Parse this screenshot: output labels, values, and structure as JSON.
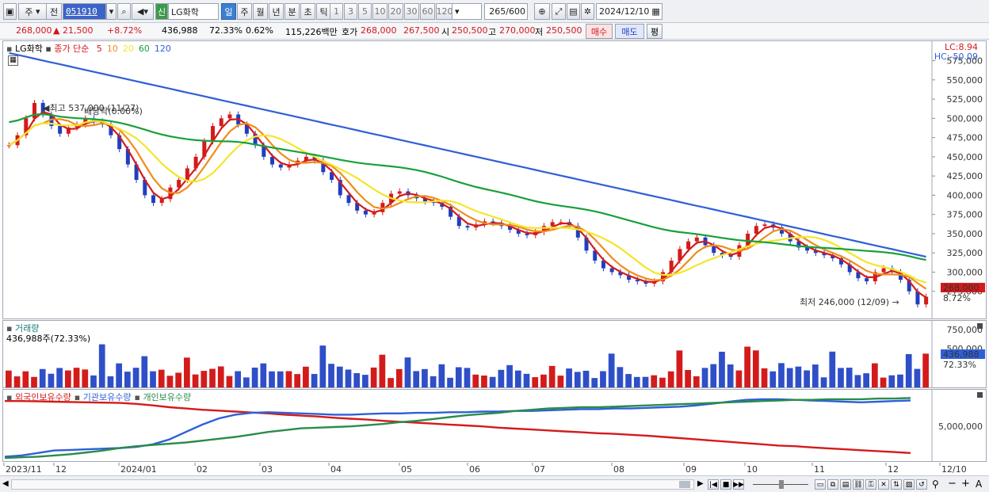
{
  "toolbar": {
    "market": "주",
    "prev": "전",
    "code": "051910",
    "name": "LG화학",
    "badge": "신",
    "periods": [
      "일",
      "주",
      "월",
      "년",
      "분",
      "초",
      "틱"
    ],
    "nums": [
      "1",
      "3",
      "5",
      "10",
      "20",
      "30",
      "60",
      "120"
    ],
    "count": "265",
    "count_total": "/600",
    "date": "2024/12/10"
  },
  "quote": {
    "price": "268,000",
    "change": "▲ 21,500",
    "rate": "+8.72%",
    "volume": "436,988",
    "vol_rate": "72.33%",
    "turnover": "0.62%",
    "amount": "115,226백만",
    "bid_label": "호가",
    "bid1": "268,000",
    "bid2": "267,500",
    "open_label": "시",
    "open": "250,500",
    "high_label": "고",
    "high": "270,000",
    "low_label": "저",
    "low": "250,500",
    "buy": "매수",
    "sell": "매도",
    "avg": "평"
  },
  "price_panel": {
    "stock": "LG화학",
    "ma_label": "종가 단순",
    "ma_periods": [
      "5",
      "10",
      "20",
      "60",
      "120"
    ],
    "ma_colors": [
      "#d41b1b",
      "#f08c1c",
      "#f5e52a",
      "#18a03a",
      "#2f5fd8"
    ],
    "lc": "LC:8.94",
    "hc": "HC:-50.09",
    "high_note": "최고 537,000 (11/27)",
    "ex_div_note": "배당락(0.00%)",
    "low_note": "최저 246,000 (12/09)",
    "price_tag": "268,000",
    "rate_tag": "8.72%"
  },
  "volume_panel": {
    "title": "거래량",
    "summary": "436,988주(72.33%)",
    "tag_value": "436,988",
    "tag_rate": "72.33%"
  },
  "holdings_panel": {
    "series": [
      "외국인보유수량",
      "기관보유수량",
      "개인보유수량"
    ],
    "colors": [
      "#d41b1b",
      "#2f5fd8",
      "#2a8c4a"
    ]
  },
  "x_axis": {
    "labels": [
      "2023/11",
      "12",
      "2024/01",
      "02",
      "03",
      "04",
      "05",
      "06",
      "07",
      "08",
      "09",
      "10",
      "11",
      "12",
      "12/10"
    ]
  },
  "chart_data": [
    {
      "type": "candlestick",
      "y_ticks": [
        "575,000",
        "550,000",
        "525,000",
        "500,000",
        "475,000",
        "450,000",
        "425,000",
        "400,000",
        "375,000",
        "350,000",
        "325,000",
        "300,000",
        "275,000"
      ],
      "ylim": [
        250000,
        590000
      ],
      "close": [
        465000,
        478000,
        500000,
        520000,
        505000,
        490000,
        480000,
        488000,
        492000,
        500000,
        496000,
        492000,
        478000,
        460000,
        440000,
        420000,
        400000,
        390000,
        395000,
        410000,
        420000,
        435000,
        450000,
        470000,
        490000,
        500000,
        505000,
        492000,
        480000,
        465000,
        450000,
        440000,
        436000,
        440000,
        445000,
        450000,
        445000,
        430000,
        420000,
        400000,
        390000,
        380000,
        375000,
        378000,
        390000,
        402000,
        405000,
        400000,
        396000,
        392000,
        390000,
        385000,
        372000,
        360000,
        358000,
        362000,
        366000,
        364000,
        360000,
        355000,
        350000,
        348000,
        352000,
        360000,
        365000,
        365000,
        360000,
        345000,
        328000,
        315000,
        305000,
        300000,
        296000,
        290000,
        288000,
        285000,
        288000,
        300000,
        315000,
        330000,
        340000,
        345000,
        335000,
        325000,
        322000,
        320000,
        335000,
        350000,
        360000,
        362000,
        358000,
        350000,
        340000,
        332000,
        328000,
        325000,
        322000,
        318000,
        310000,
        300000,
        292000,
        288000,
        300000,
        305000,
        300000,
        290000,
        275000,
        258000,
        268000
      ],
      "annotation_high": 537000,
      "annotation_low": 246000
    },
    {
      "type": "bar",
      "title": "거래량",
      "y_ticks": [
        "750,000",
        "500,000"
      ],
      "ylim": [
        0,
        820000
      ],
      "last_value": 436988
    },
    {
      "type": "line",
      "y_ticks": [
        "5,000,000"
      ],
      "series": [
        {
          "name": "외국인보유수량",
          "values": [
            9.2,
            9.2,
            9.15,
            9.1,
            9.05,
            9.0,
            8.95,
            8.9,
            8.75,
            8.5,
            8.2,
            8.0,
            7.8,
            7.65,
            7.5,
            7.35,
            7.2,
            7.0,
            6.85,
            6.7,
            6.5,
            6.35,
            6.2,
            6.0,
            5.85,
            5.7,
            5.55,
            5.4,
            5.25,
            5.1,
            4.9,
            4.75,
            4.6,
            4.45,
            4.3,
            4.15,
            4.0,
            3.9,
            3.75,
            3.6,
            3.4,
            3.2,
            3.0,
            2.8,
            2.6,
            2.4,
            2.2,
            2.0,
            1.9,
            1.7,
            1.55,
            1.4,
            1.25,
            1.1,
            0.95,
            0.8
          ]
        },
        {
          "name": "기관보유수량",
          "values": [
            0.2,
            0.4,
            0.8,
            1.2,
            1.3,
            1.4,
            1.5,
            1.6,
            1.8,
            2.2,
            3.0,
            4.2,
            5.4,
            6.4,
            7.0,
            7.3,
            7.4,
            7.3,
            7.2,
            7.1,
            7.0,
            7.0,
            7.1,
            7.2,
            7.2,
            7.3,
            7.3,
            7.4,
            7.4,
            7.5,
            7.5,
            7.6,
            7.6,
            7.7,
            7.8,
            7.9,
            7.9,
            8.0,
            8.0,
            8.1,
            8.2,
            8.3,
            8.5,
            8.8,
            9.1,
            9.4,
            9.5,
            9.5,
            9.4,
            9.3,
            9.2,
            9.1,
            9.0,
            9.1,
            9.2,
            9.3
          ]
        },
        {
          "name": "개인보유수량",
          "values": [
            0.0,
            0.1,
            0.2,
            0.4,
            0.6,
            0.9,
            1.2,
            1.6,
            1.9,
            2.1,
            2.3,
            2.5,
            2.8,
            3.1,
            3.4,
            3.8,
            4.2,
            4.5,
            4.8,
            4.9,
            5.0,
            5.1,
            5.3,
            5.5,
            5.8,
            6.0,
            6.3,
            6.6,
            6.9,
            7.1,
            7.3,
            7.6,
            7.8,
            8.0,
            8.1,
            8.2,
            8.2,
            8.3,
            8.4,
            8.5,
            8.6,
            8.7,
            8.8,
            8.9,
            9.0,
            9.1,
            9.2,
            9.3,
            9.4,
            9.4,
            9.5,
            9.5,
            9.5,
            9.6,
            9.6,
            9.7
          ]
        }
      ]
    }
  ]
}
